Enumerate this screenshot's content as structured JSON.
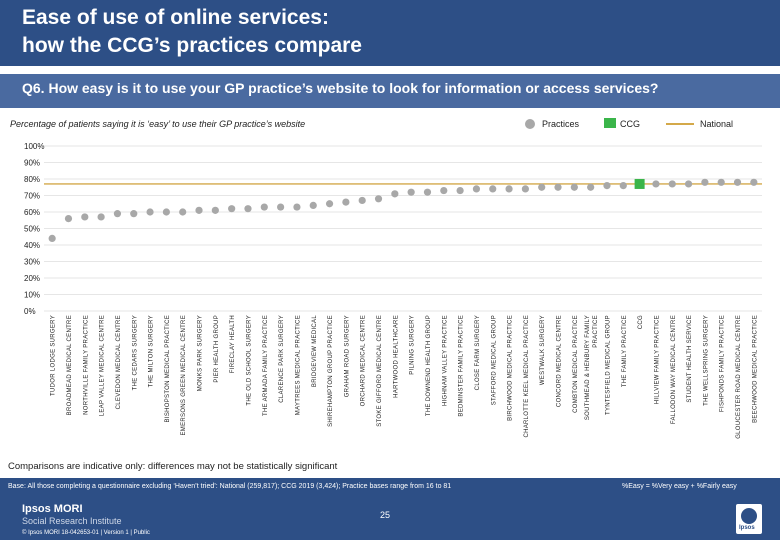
{
  "header": {
    "title_line1": "Ease of use of online services:",
    "title_line2": "how the CCG’s practices compare"
  },
  "question": "Q6. How easy is it to use your GP practice’s website to look for information or access services?",
  "subtitle": "Percentage of patients saying it is ‘easy’ to use their GP practice’s website",
  "legend": {
    "practices": "Practices",
    "ccg": "CCG",
    "national": "National"
  },
  "colors": {
    "header_bg": "#2d4f86",
    "practice_marker": "#a8a8a8",
    "ccg_marker": "#3bb54a",
    "national_line": "#d4a94a"
  },
  "note": "Comparisons are indicative only: differences may not be statistically significant",
  "footer": {
    "base": "Base: All those completing a questionnaire excluding ‘Haven’t tried’: National (259,817); CCG 2019 (3,424); Practice bases range from 16 to 81",
    "formula": "%Easy = %Very easy + %Fairly easy",
    "logo_line1": "Ipsos MORI",
    "logo_line2": "Social Research Institute",
    "copyright": "© Ipsos MORI    18-042653-01 | Version 1 | Public",
    "page_number": "25",
    "ipsos_logo": "Ipsos"
  },
  "chart_data": {
    "type": "scatter",
    "ylim": [
      0,
      100
    ],
    "yticks": [
      "0%",
      "10%",
      "20%",
      "30%",
      "40%",
      "50%",
      "60%",
      "70%",
      "80%",
      "90%",
      "100%"
    ],
    "national_value": 77,
    "ccg_category": "CCG",
    "categories": [
      "TUDOR LODGE SURGERY",
      "BROADMEAD MEDICAL CENTRE",
      "NORTHVILLE FAMILY PRACTICE",
      "LEAP VALLEY MEDICAL CENTRE",
      "CLEVEDON MEDICAL CENTRE",
      "THE CEDARS SURGERY",
      "THE MILTON SURGERY",
      "BISHOPSTON MEDICAL PRACTICE",
      "EMERSONS GREEN MEDICAL CENTRE",
      "MONKS PARK SURGERY",
      "PIER HEALTH GROUP",
      "FIRECLAY HEALTH",
      "THE OLD SCHOOL SURGERY",
      "THE ARMADA FAMILY PRACTICE",
      "CLARENCE PARK SURGERY",
      "MAYTREES MEDICAL PRACTICE",
      "BRIDGEVIEW MEDICAL",
      "SHIREHAMPTON GROUP PRACTICE",
      "GRAHAM ROAD SURGERY",
      "ORCHARD MEDICAL CENTRE",
      "STOKE GIFFORD MEDICAL CENTRE",
      "HARTWOOD HEALTHCARE",
      "PILNING SURGERY",
      "THE DOWNEND HEALTH GROUP",
      "HIGHNAM VALLEY PRACTICE",
      "BEDMINSTER FAMILY PRACTICE",
      "CLOSE FARM SURGERY",
      "STAFFORD MEDICAL GROUP",
      "BIRCHWOOD MEDICAL PRACTICE",
      "CHARLOTTE KEEL MEDICAL PRACTICE",
      "WESTWALK SURGERY",
      "CONCORD MEDICAL CENTRE",
      "COMBTON MEDICAL PRACTICE",
      "SOUTHMEAD & HENBURY FAMILY PRACTICE",
      "TYNTESFIELD MEDICAL GROUP",
      "THE FAMILY PRACTICE",
      "CCG",
      "HILLVIEW FAMILY PRACTICE",
      "FALLODON WAY MEDICAL CENTRE",
      "STUDENT HEALTH SERVICE",
      "THE WELLSPRING SURGERY",
      "FISHPONDS FAMILY PRACTICE",
      "GLOUCESTER ROAD MEDICAL CENTRE",
      "BEECHWOOD MEDICAL PRACTICE"
    ],
    "values": [
      44,
      56,
      57,
      57,
      59,
      59,
      60,
      60,
      60,
      61,
      61,
      62,
      62,
      63,
      63,
      63,
      64,
      65,
      66,
      67,
      68,
      71,
      72,
      72,
      73,
      73,
      74,
      74,
      74,
      74,
      75,
      75,
      75,
      75,
      76,
      76,
      77,
      77,
      77,
      77,
      78,
      78,
      78,
      78
    ]
  }
}
